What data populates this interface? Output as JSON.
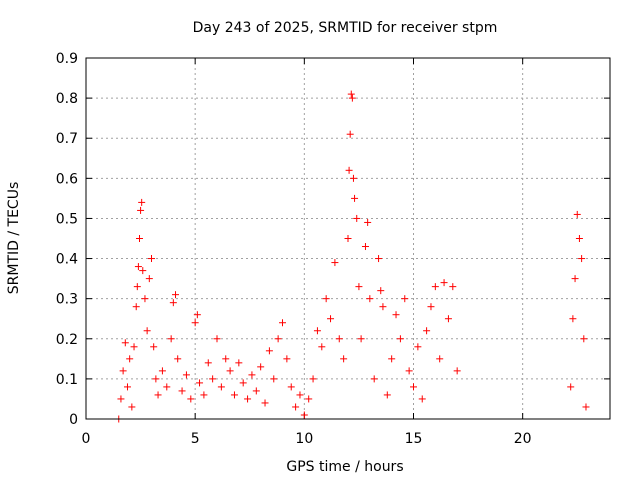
{
  "chart_data": {
    "type": "scatter",
    "title": "Day 243 of 2025, SRMTID for receiver stpm",
    "xlabel": "GPS time / hours",
    "ylabel": "SRMTID / TECUs",
    "xlim": [
      0,
      24
    ],
    "ylim": [
      0,
      0.9
    ],
    "xticks": [
      0,
      5,
      10,
      15,
      20
    ],
    "xtick_labels": [
      "0",
      "5",
      "10",
      "15",
      "20"
    ],
    "yticks": [
      0,
      0.1,
      0.2,
      0.3,
      0.4,
      0.5,
      0.6,
      0.7,
      0.8,
      0.9
    ],
    "ytick_labels": [
      "0",
      "0.1",
      "0.2",
      "0.3",
      "0.4",
      "0.5",
      "0.6",
      "0.7",
      "0.8",
      "0.9"
    ],
    "grid": true,
    "marker": "+",
    "color": "#ff0000",
    "series": [
      {
        "name": "SRMTID",
        "points": [
          [
            1.5,
            0.0
          ],
          [
            1.6,
            0.05
          ],
          [
            1.7,
            0.12
          ],
          [
            1.8,
            0.19
          ],
          [
            1.9,
            0.08
          ],
          [
            2.0,
            0.15
          ],
          [
            2.1,
            0.03
          ],
          [
            2.2,
            0.18
          ],
          [
            2.3,
            0.28
          ],
          [
            2.35,
            0.33
          ],
          [
            2.4,
            0.38
          ],
          [
            2.45,
            0.45
          ],
          [
            2.5,
            0.52
          ],
          [
            2.55,
            0.54
          ],
          [
            2.6,
            0.37
          ],
          [
            2.7,
            0.3
          ],
          [
            2.8,
            0.22
          ],
          [
            2.9,
            0.35
          ],
          [
            3.0,
            0.4
          ],
          [
            3.1,
            0.18
          ],
          [
            3.2,
            0.1
          ],
          [
            3.3,
            0.06
          ],
          [
            3.5,
            0.12
          ],
          [
            3.7,
            0.08
          ],
          [
            3.9,
            0.2
          ],
          [
            4.0,
            0.29
          ],
          [
            4.1,
            0.31
          ],
          [
            4.2,
            0.15
          ],
          [
            4.4,
            0.07
          ],
          [
            4.6,
            0.11
          ],
          [
            4.8,
            0.05
          ],
          [
            5.0,
            0.24
          ],
          [
            5.1,
            0.26
          ],
          [
            5.2,
            0.09
          ],
          [
            5.4,
            0.06
          ],
          [
            5.6,
            0.14
          ],
          [
            5.8,
            0.1
          ],
          [
            6.0,
            0.2
          ],
          [
            6.2,
            0.08
          ],
          [
            6.4,
            0.15
          ],
          [
            6.6,
            0.12
          ],
          [
            6.8,
            0.06
          ],
          [
            7.0,
            0.14
          ],
          [
            7.2,
            0.09
          ],
          [
            7.4,
            0.05
          ],
          [
            7.6,
            0.11
          ],
          [
            7.8,
            0.07
          ],
          [
            8.0,
            0.13
          ],
          [
            8.2,
            0.04
          ],
          [
            8.4,
            0.17
          ],
          [
            8.6,
            0.1
          ],
          [
            8.8,
            0.2
          ],
          [
            9.0,
            0.24
          ],
          [
            9.2,
            0.15
          ],
          [
            9.4,
            0.08
          ],
          [
            9.6,
            0.03
          ],
          [
            9.8,
            0.06
          ],
          [
            10.0,
            0.01
          ],
          [
            10.2,
            0.05
          ],
          [
            10.4,
            0.1
          ],
          [
            10.6,
            0.22
          ],
          [
            10.8,
            0.18
          ],
          [
            11.0,
            0.3
          ],
          [
            11.2,
            0.25
          ],
          [
            11.4,
            0.39
          ],
          [
            11.6,
            0.2
          ],
          [
            11.8,
            0.15
          ],
          [
            12.0,
            0.45
          ],
          [
            12.05,
            0.62
          ],
          [
            12.1,
            0.71
          ],
          [
            12.15,
            0.81
          ],
          [
            12.2,
            0.8
          ],
          [
            12.25,
            0.6
          ],
          [
            12.3,
            0.55
          ],
          [
            12.4,
            0.5
          ],
          [
            12.5,
            0.33
          ],
          [
            12.6,
            0.2
          ],
          [
            12.8,
            0.43
          ],
          [
            12.9,
            0.49
          ],
          [
            13.0,
            0.3
          ],
          [
            13.2,
            0.1
          ],
          [
            13.4,
            0.4
          ],
          [
            13.5,
            0.32
          ],
          [
            13.6,
            0.28
          ],
          [
            13.8,
            0.06
          ],
          [
            14.0,
            0.15
          ],
          [
            14.2,
            0.26
          ],
          [
            14.4,
            0.2
          ],
          [
            14.6,
            0.3
          ],
          [
            14.8,
            0.12
          ],
          [
            15.0,
            0.08
          ],
          [
            15.2,
            0.18
          ],
          [
            15.4,
            0.05
          ],
          [
            15.6,
            0.22
          ],
          [
            15.8,
            0.28
          ],
          [
            16.0,
            0.33
          ],
          [
            16.2,
            0.15
          ],
          [
            16.4,
            0.34
          ],
          [
            16.6,
            0.25
          ],
          [
            16.8,
            0.33
          ],
          [
            17.0,
            0.12
          ],
          [
            22.2,
            0.08
          ],
          [
            22.3,
            0.25
          ],
          [
            22.4,
            0.35
          ],
          [
            22.5,
            0.51
          ],
          [
            22.6,
            0.45
          ],
          [
            22.7,
            0.4
          ],
          [
            22.8,
            0.2
          ],
          [
            22.9,
            0.03
          ]
        ]
      }
    ]
  }
}
